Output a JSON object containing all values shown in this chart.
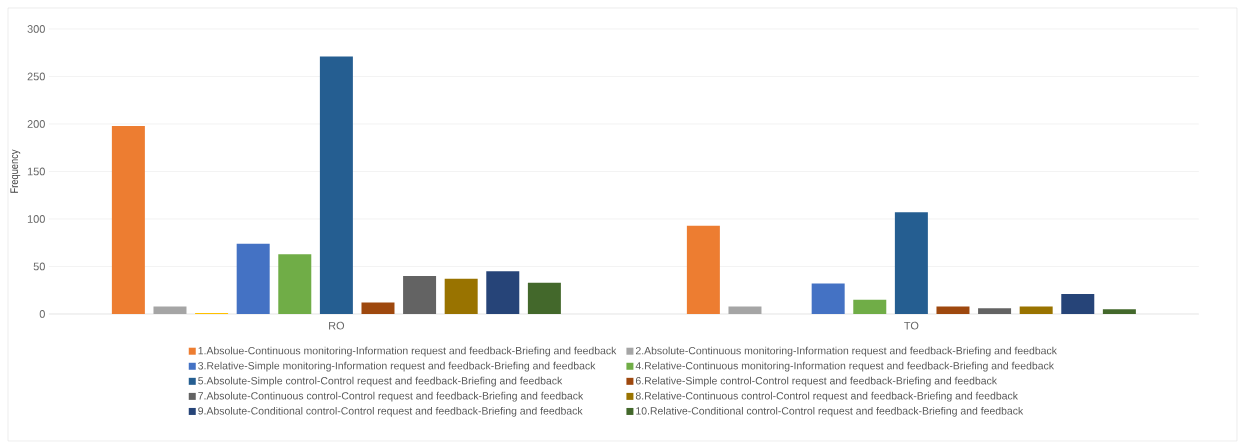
{
  "chart_data": {
    "type": "bar",
    "ylabel": "Frequency",
    "categories": [
      "RO",
      "TO"
    ],
    "series": [
      {
        "name": "1.Absolue-Continuous monitoring-Information request and feedback-Briefing and feedback",
        "color": "#ed7d31",
        "values": [
          198,
          93
        ]
      },
      {
        "name": "2.Absolute-Continuous monitoring-Information request and feedback-Briefing and feedback",
        "color": "#a5a5a5",
        "values": [
          8,
          8
        ]
      },
      {
        "color": "#ffc000",
        "values": [
          1,
          0
        ]
      },
      {
        "name": "3.Relative-Simple monitoring-Information request and feedback-Briefing and feedback",
        "color": "#4472c4",
        "values": [
          74,
          32
        ]
      },
      {
        "name": "4.Relative-Continuous monitoring-Information request and feedback-Briefing and feedback",
        "color": "#70ad47",
        "values": [
          63,
          15
        ]
      },
      {
        "name": "5.Absolute-Simple control-Control request and feedback-Briefing and feedback",
        "color": "#255e91",
        "values": [
          271,
          107
        ]
      },
      {
        "name": "6.Relative-Simple control-Control request and feedback-Briefing and feedback",
        "color": "#9e480e",
        "values": [
          12,
          8
        ]
      },
      {
        "name": "7.Absolute-Continuous control-Control request and feedback-Briefing and feedback",
        "color": "#636363",
        "values": [
          40,
          6
        ]
      },
      {
        "name": "8.Relative-Continuous control-Control request and feedback-Briefing and feedback",
        "color": "#997300",
        "values": [
          37,
          8
        ]
      },
      {
        "name": "9.Absolute-Conditional control-Control request and feedback-Briefing and feedback",
        "color": "#264478",
        "values": [
          45,
          21
        ]
      },
      {
        "name": "10.Relative-Conditional control-Control request and feedback-Briefing and feedback",
        "color": "#43682b",
        "values": [
          33,
          5
        ]
      }
    ],
    "ylim": [
      0,
      300
    ],
    "yticks": [
      0,
      50,
      100,
      150,
      200,
      250,
      300
    ],
    "grid": "y",
    "legend": "bottom"
  }
}
